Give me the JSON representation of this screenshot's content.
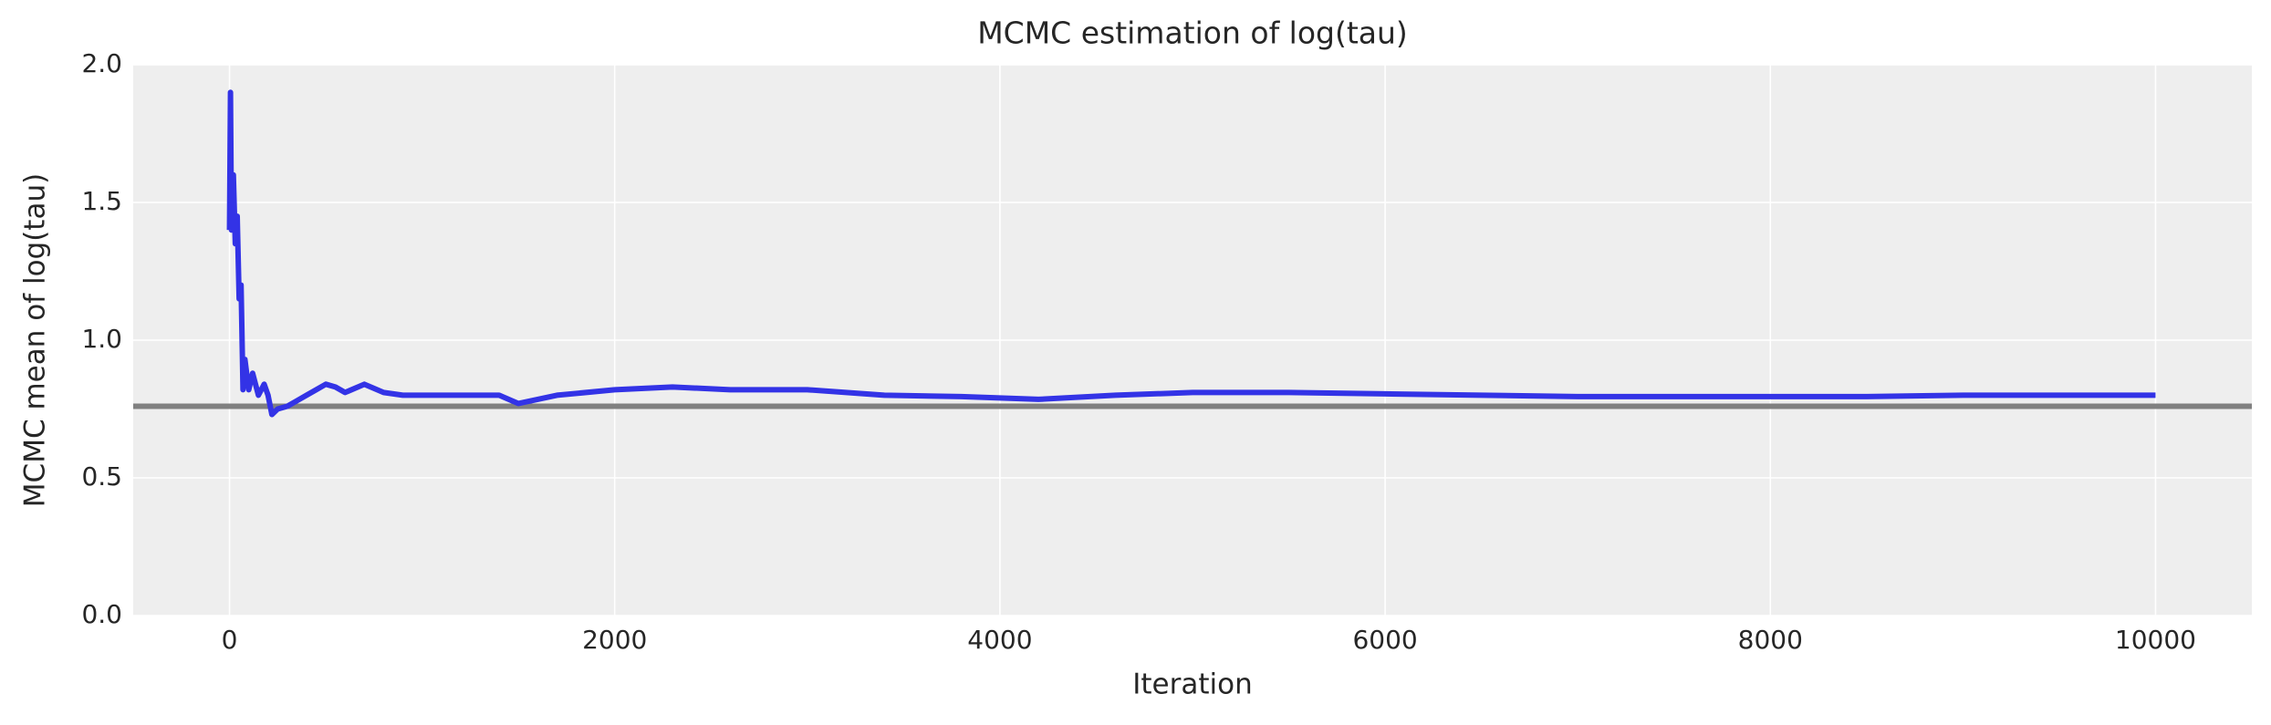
{
  "chart_data": {
    "type": "line",
    "title": "MCMC estimation of log(tau)",
    "xlabel": "Iteration",
    "ylabel": "MCMC mean of log(tau)",
    "x": [
      0,
      5,
      10,
      20,
      30,
      40,
      50,
      60,
      70,
      80,
      100,
      120,
      150,
      180,
      200,
      220,
      250,
      300,
      350,
      400,
      450,
      500,
      550,
      600,
      700,
      800,
      900,
      1000,
      1200,
      1400,
      1500,
      1700,
      2000,
      2300,
      2600,
      3000,
      3400,
      3800,
      4200,
      4600,
      5000,
      5500,
      6000,
      6500,
      7000,
      7500,
      8000,
      8500,
      9000,
      9500,
      10000
    ],
    "values": [
      1.4,
      1.9,
      1.4,
      1.6,
      1.35,
      1.45,
      1.15,
      1.2,
      0.82,
      0.93,
      0.82,
      0.88,
      0.8,
      0.84,
      0.8,
      0.73,
      0.75,
      0.76,
      0.78,
      0.8,
      0.82,
      0.84,
      0.83,
      0.81,
      0.84,
      0.81,
      0.8,
      0.8,
      0.8,
      0.8,
      0.77,
      0.8,
      0.82,
      0.83,
      0.82,
      0.82,
      0.8,
      0.795,
      0.785,
      0.8,
      0.81,
      0.81,
      0.805,
      0.8,
      0.795,
      0.795,
      0.795,
      0.795,
      0.8,
      0.8,
      0.8
    ],
    "color": "#3333e6",
    "reference_line": {
      "value": 0.76,
      "color": "#808080"
    },
    "xlim": [
      -500,
      10500
    ],
    "ylim": [
      0,
      2
    ],
    "xticks": [
      0,
      2000,
      4000,
      6000,
      8000,
      10000
    ],
    "yticks": [
      {
        "value": 0,
        "label": "0.0"
      },
      0.5,
      {
        "value": 1,
        "label": "1.0"
      },
      1.5,
      {
        "value": 2,
        "label": "2.0"
      }
    ],
    "grid": true
  }
}
